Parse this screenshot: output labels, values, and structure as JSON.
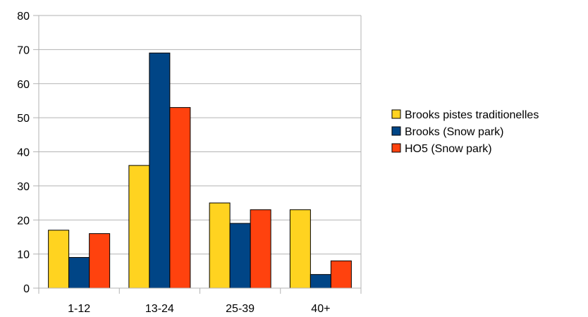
{
  "chart_data": {
    "type": "bar",
    "title": "",
    "xlabel": "",
    "ylabel": "",
    "categories": [
      "1-12",
      "13-24",
      "25-39",
      "40+"
    ],
    "ylim": [
      0,
      80
    ],
    "yticks": [
      0,
      10,
      20,
      30,
      40,
      50,
      60,
      70,
      80
    ],
    "grid": true,
    "legend_position": "right",
    "series": [
      {
        "name": "Brooks pistes traditionelles",
        "color": "#ffd320",
        "values": [
          17,
          36,
          25,
          23
        ]
      },
      {
        "name": "Brooks (Snow park)",
        "color": "#004586",
        "values": [
          9,
          69,
          19,
          4
        ]
      },
      {
        "name": "HO5 (Snow park)",
        "color": "#ff420e",
        "values": [
          16,
          53,
          23,
          8
        ]
      }
    ]
  }
}
